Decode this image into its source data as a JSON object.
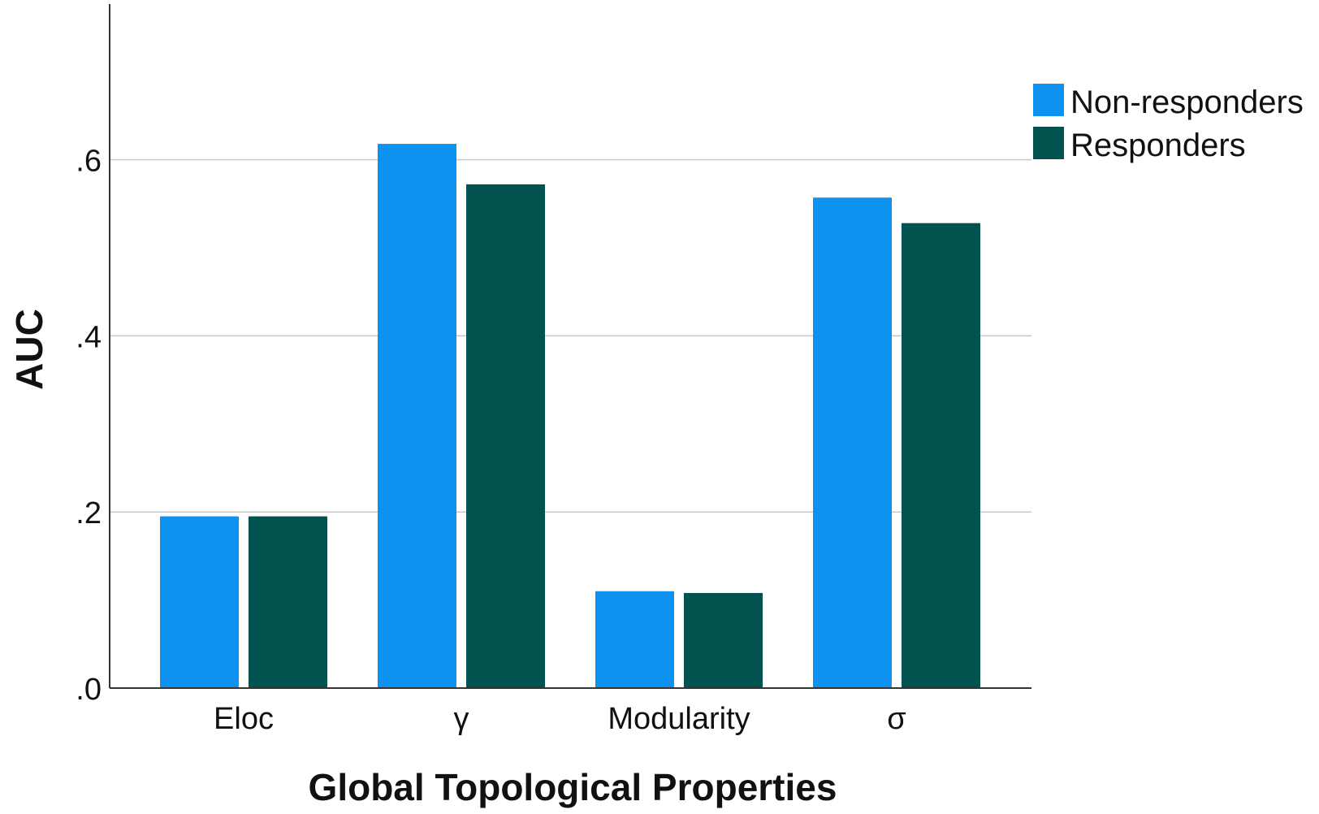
{
  "chart_data": {
    "type": "bar",
    "title": "",
    "xlabel": "Global Topological Properties",
    "ylabel": "AUC",
    "categories": [
      "Eloc",
      "γ",
      "Modularity",
      "σ"
    ],
    "series": [
      {
        "name": "Non-responders",
        "color": "#0d93ef",
        "values": [
          0.195,
          0.618,
          0.11,
          0.557
        ]
      },
      {
        "name": "Responders",
        "color": "#02524f",
        "values": [
          0.195,
          0.572,
          0.108,
          0.528
        ]
      }
    ],
    "ylim": [
      0,
      0.8
    ],
    "yticks": [
      0,
      0.2,
      0.4,
      0.6
    ],
    "ytick_labels": [
      ".0",
      ".2",
      ".4",
      ".6"
    ],
    "grid": true,
    "legend": {
      "placement": "top-right",
      "entries": [
        "Non-responders",
        "Responders"
      ]
    }
  }
}
